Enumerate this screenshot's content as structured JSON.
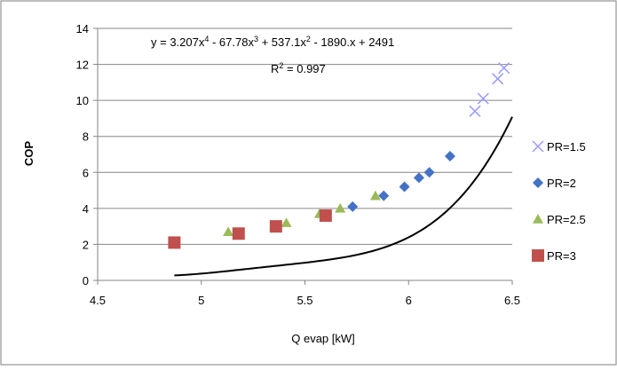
{
  "chart_data": {
    "type": "scatter",
    "xlabel": "Q evap [kW]",
    "ylabel": "COP",
    "xlim": [
      4.5,
      6.5
    ],
    "ylim": [
      0,
      14
    ],
    "xticks": [
      4.5,
      5,
      5.5,
      6,
      6.5
    ],
    "xtick_labels": [
      "4.5",
      "5",
      "5.5",
      "6",
      "6.5"
    ],
    "yticks": [
      0,
      2,
      4,
      6,
      8,
      10,
      12,
      14
    ],
    "ytick_labels": [
      "0",
      "2",
      "4",
      "6",
      "8",
      "10",
      "12",
      "14"
    ],
    "grid": "horizontal",
    "legend_position": "right",
    "annotations": {
      "equation": {
        "prefix": "y = 3.207x",
        "p1": "4",
        "t1": " - 67.78x",
        "p2": "3",
        "t2": " + 537.1x",
        "p3": "2",
        "t3": " - 1890.x + 2491"
      },
      "r2": {
        "prefix": "R",
        "sup": "2",
        "suffix": " = 0.997"
      }
    },
    "trendline": {
      "type": "polynomial",
      "coefficients": [
        3.207,
        -67.78,
        537.1,
        -1890.0,
        2491
      ],
      "x_range": [
        4.87,
        6.5
      ],
      "color": "#000000"
    },
    "series": [
      {
        "name": "PR=1.5",
        "marker": "x",
        "color": "#9999ff",
        "points": [
          [
            6.32,
            9.4
          ],
          [
            6.36,
            10.1
          ],
          [
            6.43,
            11.2
          ],
          [
            6.46,
            11.8
          ]
        ]
      },
      {
        "name": "PR=2",
        "marker": "diamond",
        "color": "#4472c4",
        "points": [
          [
            5.73,
            4.1
          ],
          [
            5.88,
            4.7
          ],
          [
            5.98,
            5.2
          ],
          [
            6.05,
            5.7
          ],
          [
            6.1,
            6.0
          ],
          [
            6.2,
            6.9
          ]
        ]
      },
      {
        "name": "PR=2.5",
        "marker": "triangle",
        "color": "#9bbb59",
        "points": [
          [
            5.13,
            2.7
          ],
          [
            5.41,
            3.2
          ],
          [
            5.57,
            3.7
          ],
          [
            5.67,
            4.0
          ],
          [
            5.84,
            4.7
          ]
        ]
      },
      {
        "name": "PR=3",
        "marker": "square",
        "color": "#c0504d",
        "points": [
          [
            4.87,
            2.1
          ],
          [
            5.18,
            2.6
          ],
          [
            5.36,
            3.0
          ],
          [
            5.6,
            3.6
          ]
        ]
      }
    ]
  }
}
